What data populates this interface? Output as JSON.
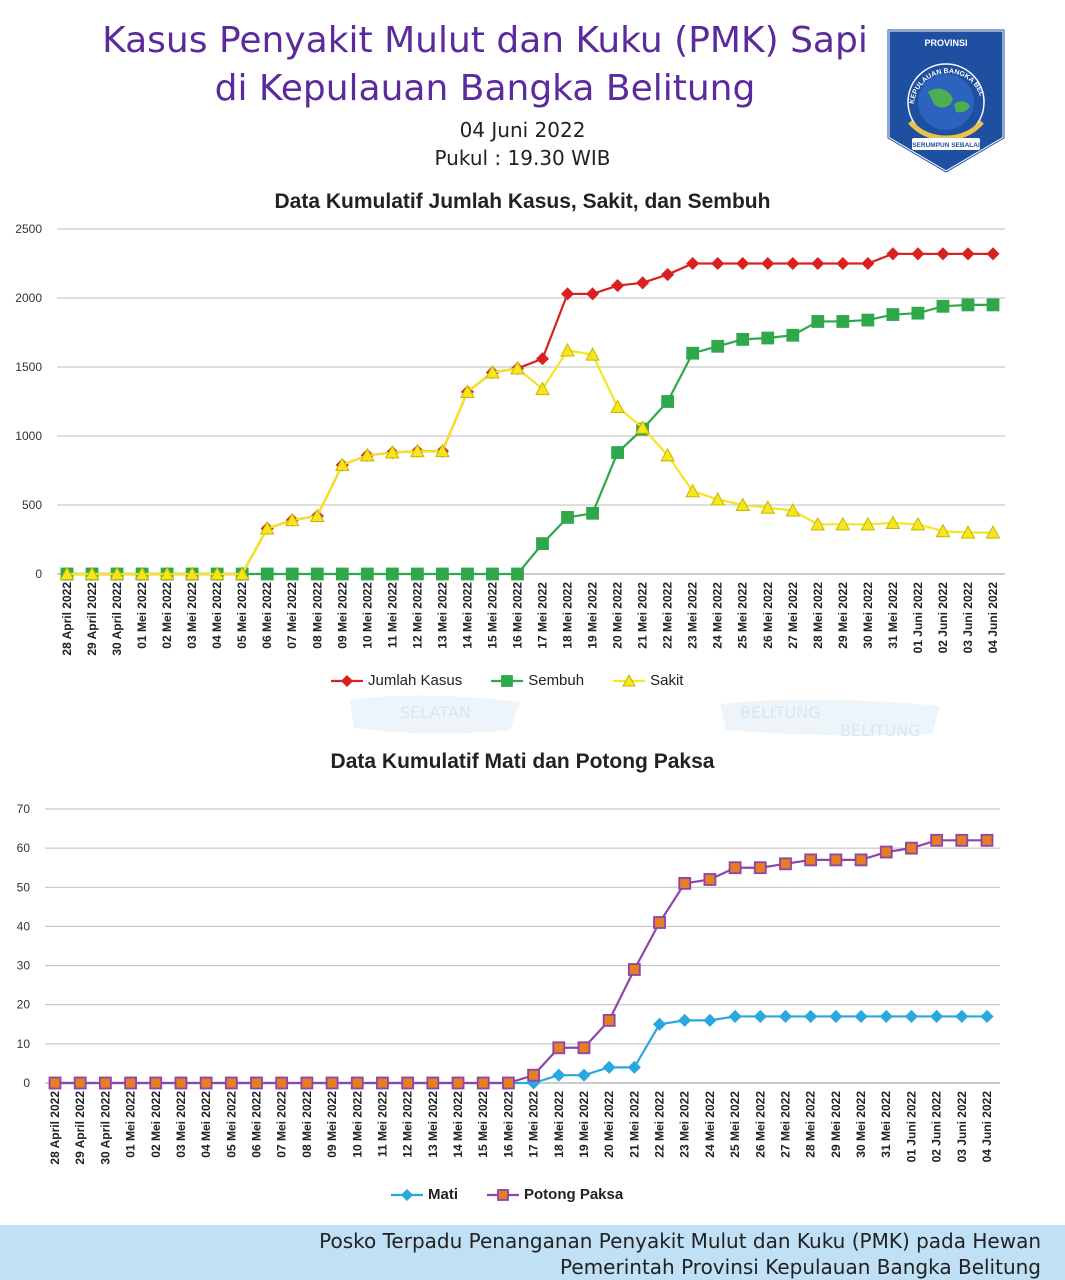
{
  "header": {
    "title_line1": "Kasus Penyakit Mulut dan Kuku (PMK) Sapi",
    "title_line2": "di Kepulauan Bangka Belitung",
    "date": "04 Juni 2022",
    "time": "Pukul : 19.30 WIB"
  },
  "logo": {
    "top_text": "PROVINSI",
    "ring_text": "KEPULAUAN BANGKA BELITUNG",
    "motto": "SERUMPUN SEBALAI",
    "colors": {
      "shield": "#1f4fa0",
      "border": "#ffffff",
      "map": "#4caf50",
      "gold": "#e8c24a"
    }
  },
  "footer": {
    "line1": "Posko Terpadu Penanganan Penyakit Mulut dan Kuku (PMK) pada Hewan",
    "line2": "Pemerintah Provinsi Kepulauan Bangka Belitung",
    "background": "#bfe0f5"
  },
  "watermark": {
    "texts": [
      "SELATAN",
      "BELITUNG",
      "BELITUNG"
    ]
  },
  "chart_data": [
    {
      "type": "line",
      "title": "Data Kumulatif Jumlah  Kasus, Sakit, dan Sembuh",
      "xlabel": "",
      "ylabel": "",
      "ylim": [
        0,
        2500
      ],
      "yticks": [
        0,
        500,
        1000,
        1500,
        2000,
        2500
      ],
      "grid": true,
      "legend_position": "bottom",
      "categories": [
        "28 April 2022",
        "29 April 2022",
        "30 April 2022",
        "01 Mei 2022",
        "02 Mei 2022",
        "03 Mei 2022",
        "04 Mei 2022",
        "05 Mei 2022",
        "06 Mei 2022",
        "07 Mei 2022",
        "08 Mei 2022",
        "09 Mei 2022",
        "10 Mei 2022",
        "11 Mei 2022",
        "12 Mei 2022",
        "13 Mei 2022",
        "14 Mei 2022",
        "15 Mei 2022",
        "16 Mei 2022",
        "17 Mei 2022",
        "18 Mei 2022",
        "19 Mei 2022",
        "20 Mei 2022",
        "21 Mei 2022",
        "22 Mei 2022",
        "23 Mei 2022",
        "24 Mei 2022",
        "25 Mei 2022",
        "26 Mei 2022",
        "27 Mei 2022",
        "28 Mei 2022",
        "29 Mei 2022",
        "30 Mei 2022",
        "31 Mei 2022",
        "01 Juni 2022",
        "02 Juni 2022",
        "03 Juni 2022",
        "04 Juni 2022"
      ],
      "series": [
        {
          "name": "Jumlah Kasus",
          "color": "#d92121",
          "marker": "diamond",
          "values": [
            0,
            0,
            0,
            0,
            0,
            0,
            0,
            0,
            330,
            390,
            420,
            790,
            860,
            880,
            890,
            890,
            1320,
            1460,
            1490,
            1560,
            2030,
            2030,
            2090,
            2110,
            2170,
            2250,
            2250,
            2250,
            2250,
            2250,
            2250,
            2250,
            2250,
            2320,
            2320,
            2320,
            2320,
            2320
          ]
        },
        {
          "name": "Sembuh",
          "color": "#2ea84a",
          "marker": "square",
          "values": [
            0,
            0,
            0,
            0,
            0,
            0,
            0,
            0,
            0,
            0,
            0,
            0,
            0,
            0,
            0,
            0,
            0,
            0,
            0,
            220,
            410,
            440,
            880,
            1050,
            1250,
            1600,
            1650,
            1700,
            1710,
            1730,
            1830,
            1830,
            1840,
            1880,
            1890,
            1940,
            1950,
            1950
          ]
        },
        {
          "name": "Sakit",
          "color": "#f5e61e",
          "marker": "triangle",
          "values": [
            0,
            0,
            0,
            0,
            0,
            0,
            0,
            0,
            330,
            390,
            420,
            790,
            860,
            880,
            890,
            890,
            1320,
            1460,
            1490,
            1340,
            1620,
            1590,
            1210,
            1060,
            860,
            600,
            540,
            500,
            480,
            460,
            360,
            360,
            360,
            370,
            360,
            310,
            300,
            300
          ]
        }
      ]
    },
    {
      "type": "line",
      "title": "Data Kumulatif Mati dan Potong Paksa",
      "xlabel": "",
      "ylabel": "",
      "ylim": [
        0,
        70
      ],
      "yticks": [
        0,
        10,
        20,
        30,
        40,
        50,
        60,
        70
      ],
      "grid": true,
      "legend_position": "bottom",
      "categories": [
        "28 April 2022",
        "29 April 2022",
        "30 April 2022",
        "01 Mei 2022",
        "02 Mei 2022",
        "03 Mei 2022",
        "04 Mei 2022",
        "05 Mei 2022",
        "06 Mei 2022",
        "07 Mei 2022",
        "08 Mei 2022",
        "09 Mei 2022",
        "10 Mei 2022",
        "11 Mei 2022",
        "12 Mei 2022",
        "13 Mei 2022",
        "14 Mei 2022",
        "15 Mei 2022",
        "16 Mei 2022",
        "17 Mei 2022",
        "18 Mei 2022",
        "19 Mei 2022",
        "20 Mei 2022",
        "21 Mei 2022",
        "22 Mei 2022",
        "23 Mei 2022",
        "24 Mei 2022",
        "25 Mei 2022",
        "26 Mei 2022",
        "27 Mei 2022",
        "28 Mei 2022",
        "29 Mei 2022",
        "30 Mei 2022",
        "31 Mei 2022",
        "01 Juni 2022",
        "02 Juni 2022",
        "03 Juni 2022",
        "04 Juni 2022"
      ],
      "series": [
        {
          "name": "Mati",
          "color": "#29a8e0",
          "marker": "diamond",
          "values": [
            0,
            0,
            0,
            0,
            0,
            0,
            0,
            0,
            0,
            0,
            0,
            0,
            0,
            0,
            0,
            0,
            0,
            0,
            0,
            0,
            2,
            2,
            4,
            4,
            15,
            16,
            16,
            17,
            17,
            17,
            17,
            17,
            17,
            17,
            17,
            17,
            17,
            17
          ]
        },
        {
          "name": "Potong Paksa",
          "color": "#8e44ad",
          "fill": "#e67e22",
          "marker": "square",
          "values": [
            0,
            0,
            0,
            0,
            0,
            0,
            0,
            0,
            0,
            0,
            0,
            0,
            0,
            0,
            0,
            0,
            0,
            0,
            0,
            2,
            9,
            9,
            16,
            29,
            41,
            51,
            52,
            55,
            55,
            56,
            57,
            57,
            57,
            59,
            60,
            62,
            62,
            62
          ]
        }
      ]
    }
  ]
}
